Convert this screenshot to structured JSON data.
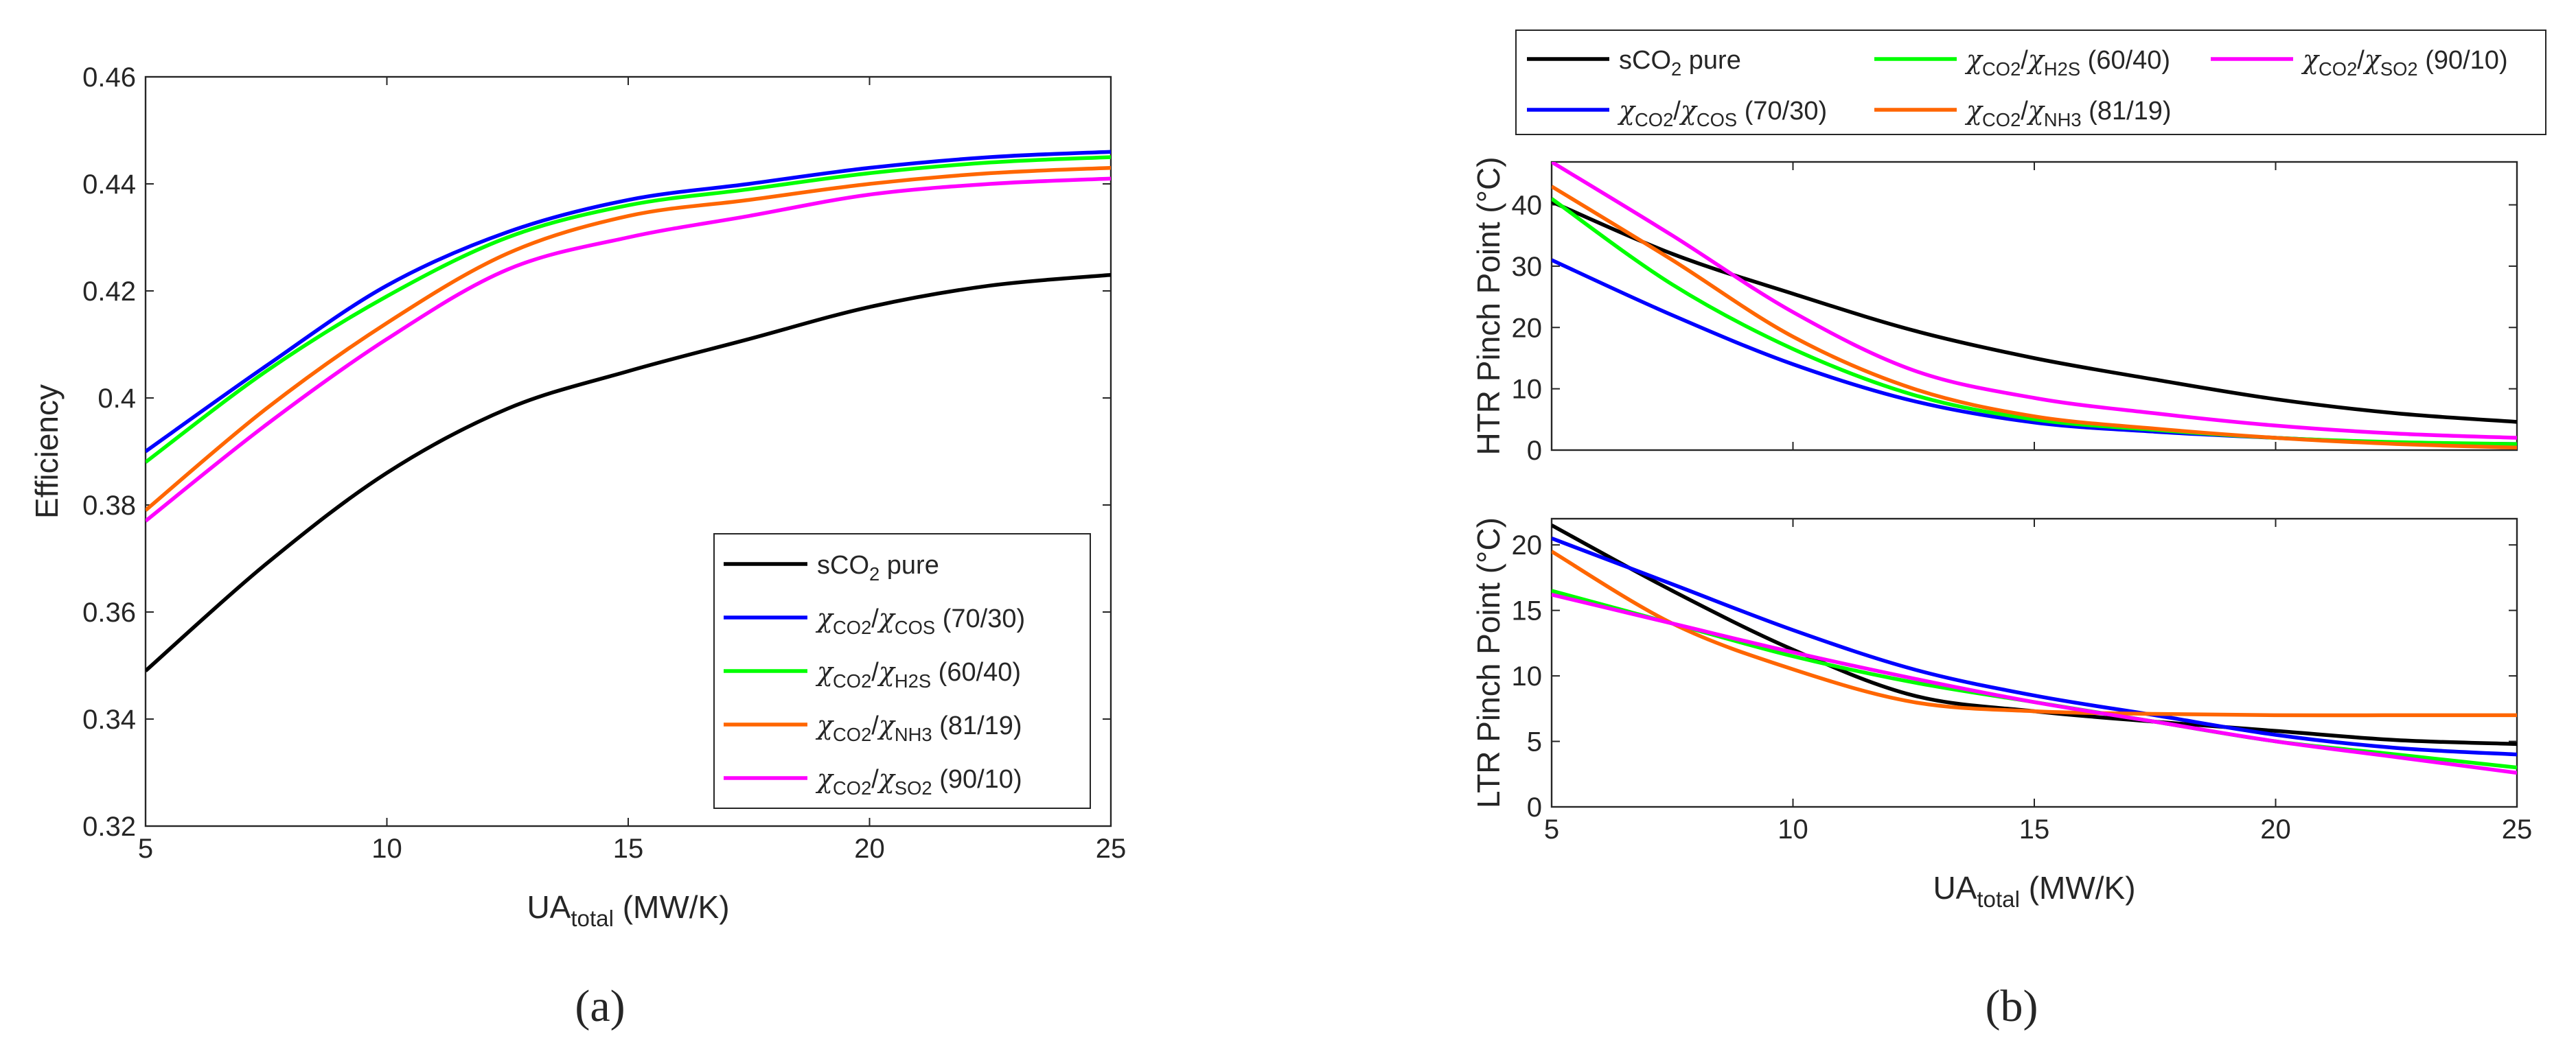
{
  "chart_data": [
    {
      "type": "line",
      "panel_label": "(a)",
      "xlabel": {
        "base": "UA",
        "sub": "total",
        "rest": " (MW/K)"
      },
      "ylabel": "Efficiency",
      "xlim": [
        5,
        25
      ],
      "ylim": [
        0.32,
        0.46
      ],
      "xticks": [
        "5",
        "10",
        "15",
        "20",
        "25"
      ],
      "yticks": [
        "0.32",
        "0.34",
        "0.36",
        "0.38",
        "0.4",
        "0.42",
        "0.44",
        "0.46"
      ],
      "legend_position": "bottom-right",
      "x": [
        5,
        7.5,
        10,
        12.5,
        15,
        17.5,
        20,
        22.5,
        25
      ],
      "series": [
        {
          "name": "sco2",
          "color": "#000000",
          "values": [
            0.349,
            0.369,
            0.386,
            0.398,
            0.405,
            0.411,
            0.417,
            0.421,
            0.423
          ]
        },
        {
          "name": "cos",
          "color": "#0000ff",
          "values": [
            0.39,
            0.406,
            0.421,
            0.431,
            0.437,
            0.44,
            0.443,
            0.445,
            0.446
          ]
        },
        {
          "name": "h2s",
          "color": "#00ff00",
          "values": [
            0.388,
            0.405,
            0.419,
            0.43,
            0.436,
            0.439,
            0.442,
            0.444,
            0.445
          ]
        },
        {
          "name": "nh3",
          "color": "#ff6600",
          "values": [
            0.379,
            0.398,
            0.414,
            0.427,
            0.434,
            0.437,
            0.44,
            0.442,
            0.443
          ]
        },
        {
          "name": "so2",
          "color": "#ff00ff",
          "values": [
            0.377,
            0.395,
            0.411,
            0.424,
            0.43,
            0.434,
            0.438,
            0.44,
            0.441
          ]
        }
      ]
    },
    {
      "type": "line",
      "panel_label": "(b)",
      "xlabel": {
        "base": "UA",
        "sub": "total",
        "rest": " (MW/K)"
      },
      "xlim": [
        5,
        25
      ],
      "xticks": [
        "5",
        "10",
        "15",
        "20",
        "25"
      ],
      "subplots": [
        {
          "ylabel": "HTR Pinch Point (°C)",
          "ylim": [
            0,
            47
          ],
          "yticks": [
            "0",
            "10",
            "20",
            "30",
            "40"
          ],
          "x": [
            5,
            7.5,
            10,
            12.5,
            15,
            17.5,
            20,
            22.5,
            25
          ],
          "series": [
            {
              "name": "sco2",
              "color": "#000000",
              "values": [
                40.5,
                32.0,
                25.5,
                19.5,
                15.0,
                11.5,
                8.3,
                6.0,
                4.6
              ]
            },
            {
              "name": "cos",
              "color": "#0000ff",
              "values": [
                31.0,
                22.0,
                14.0,
                8.0,
                4.5,
                3.0,
                2.0,
                1.2,
                1.0
              ]
            },
            {
              "name": "h2s",
              "color": "#00ff00",
              "values": [
                41.0,
                27.0,
                16.5,
                9.0,
                5.0,
                3.3,
                2.0,
                1.3,
                1.0
              ]
            },
            {
              "name": "nh3",
              "color": "#ff6600",
              "values": [
                43.0,
                31.0,
                18.5,
                10.0,
                5.5,
                3.5,
                2.0,
                1.0,
                0.4
              ]
            },
            {
              "name": "so2",
              "color": "#ff00ff",
              "values": [
                47.0,
                35.0,
                22.5,
                13.0,
                8.5,
                6.0,
                4.0,
                2.7,
                2.0
              ]
            }
          ]
        },
        {
          "ylabel": "LTR Pinch Point (°C)",
          "ylim": [
            0,
            22
          ],
          "yticks": [
            "0",
            "5",
            "10",
            "15",
            "20"
          ],
          "x": [
            5,
            7.5,
            10,
            12.5,
            15,
            17.5,
            20,
            22.5,
            25
          ],
          "series": [
            {
              "name": "sco2",
              "color": "#000000",
              "values": [
                21.5,
                16.5,
                12.0,
                8.5,
                7.3,
                6.5,
                5.8,
                5.1,
                4.8
              ]
            },
            {
              "name": "cos",
              "color": "#0000ff",
              "values": [
                20.5,
                17.0,
                13.5,
                10.5,
                8.5,
                7.0,
                5.5,
                4.5,
                4.0
              ]
            },
            {
              "name": "h2s",
              "color": "#00ff00",
              "values": [
                16.5,
                14.0,
                11.5,
                9.5,
                8.0,
                6.5,
                5.0,
                4.0,
                3.0
              ]
            },
            {
              "name": "nh3",
              "color": "#ff6600",
              "values": [
                19.5,
                14.0,
                10.5,
                8.0,
                7.3,
                7.1,
                7.0,
                7.0,
                7.0
              ]
            },
            {
              "name": "so2",
              "color": "#ff00ff",
              "values": [
                16.2,
                14.0,
                11.8,
                9.8,
                8.0,
                6.5,
                5.0,
                3.8,
                2.6
              ]
            }
          ]
        }
      ]
    }
  ],
  "legend": {
    "entries": [
      {
        "id": "sco2",
        "color": "#000000",
        "pre": "sCO",
        "pre_sub": "2",
        "text": " pure"
      },
      {
        "id": "cos",
        "color": "#0000ff",
        "num_sub": "CO2",
        "den_sub": "COS",
        "ratio": " (70/30)"
      },
      {
        "id": "h2s",
        "color": "#00ff00",
        "num_sub": "CO2",
        "den_sub": "H2S",
        "ratio": " (60/40)"
      },
      {
        "id": "nh3",
        "color": "#ff6600",
        "num_sub": "CO2",
        "den_sub": "NH3",
        "ratio": " (81/19)"
      },
      {
        "id": "so2",
        "color": "#ff00ff",
        "num_sub": "CO2",
        "den_sub": "SO2",
        "ratio": " (90/10)"
      }
    ],
    "chi_symbol": "χ",
    "slash": "/"
  }
}
